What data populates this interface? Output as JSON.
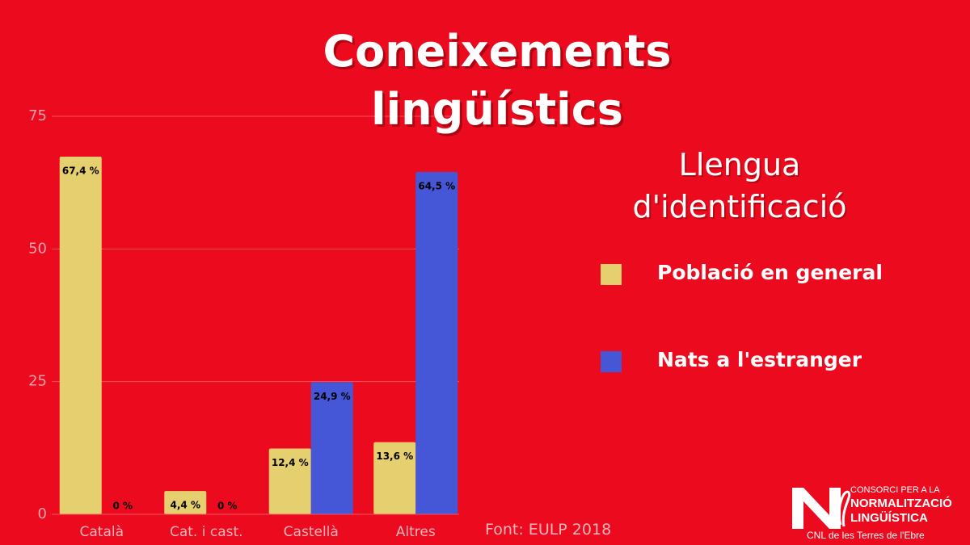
{
  "chart_data": {
    "type": "bar",
    "title": "Coneixements lingüístics",
    "legend_title": "Llengua d'identificació",
    "source": "Font: EULP 2018",
    "categories": [
      "Català",
      "Cat. i cast.",
      "Castellà",
      "Altres"
    ],
    "series": [
      {
        "name": "Població en general",
        "color": "#e6cf6e",
        "values": [
          67.4,
          4.4,
          12.4,
          13.6
        ],
        "value_labels": [
          "67,4 %",
          "4,4 %",
          "12,4 %",
          "13,6 %"
        ]
      },
      {
        "name": "Nats a l'estranger",
        "color": "#4557d6",
        "values": [
          0,
          0,
          24.9,
          64.5
        ],
        "value_labels": [
          "0 %",
          "0 %",
          "24,9 %",
          "64,5 %"
        ]
      }
    ],
    "ylim": [
      0,
      75
    ],
    "yticks": [
      0,
      25,
      50,
      75
    ],
    "grid": true
  },
  "logo": {
    "line1": "CONSORCI PER A LA",
    "line2": "NORMALITZACIÓ",
    "line3": "LINGÜÍSTICA",
    "line4": "CNL de les Terres de l'Ebre"
  }
}
